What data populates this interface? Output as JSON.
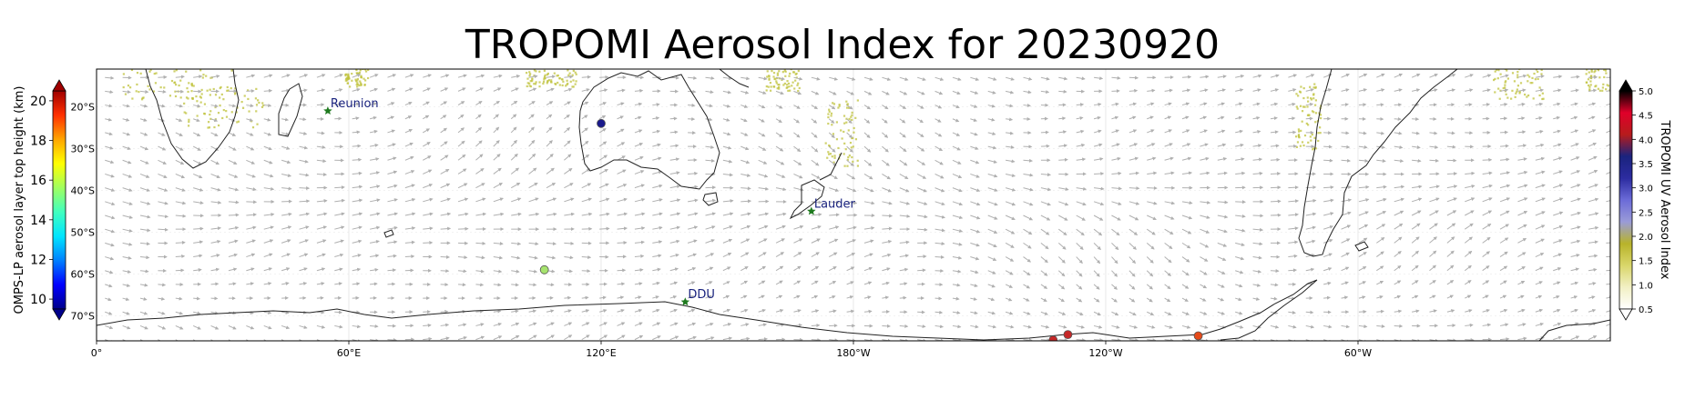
{
  "title": "TROPOMI Aerosol Index for 20230920",
  "map": {
    "lon_min": 0,
    "lon_max": 360,
    "lat_min": -76,
    "lat_max": -11,
    "x_ticks": [
      {
        "lon": 0,
        "label": "0°"
      },
      {
        "lon": 60,
        "label": "60°E"
      },
      {
        "lon": 120,
        "label": "120°E"
      },
      {
        "lon": 180,
        "label": "180°W"
      },
      {
        "lon": 240,
        "label": "120°W"
      },
      {
        "lon": 300,
        "label": "60°W"
      }
    ],
    "y_ticks": [
      {
        "lat": -20,
        "label": "20°S"
      },
      {
        "lat": -30,
        "label": "30°S"
      },
      {
        "lat": -40,
        "label": "40°S"
      },
      {
        "lat": -50,
        "label": "50°S"
      },
      {
        "lat": -60,
        "label": "60°S"
      },
      {
        "lat": -70,
        "label": "70°S"
      }
    ],
    "wind_arrow_color": "#b0b0b0",
    "coastline_color": "#222222",
    "aerosol_patch_color": "#bfc13a"
  },
  "stations": [
    {
      "name": "Reunion",
      "lon": 55,
      "lat": -21,
      "marker": "star",
      "color": "#1f7a1f",
      "label_color": "#1a237e"
    },
    {
      "name": "Lauder",
      "lon": 170,
      "lat": -45,
      "marker": "star",
      "color": "#1f7a1f",
      "label_color": "#1a237e"
    },
    {
      "name": "DDU",
      "lon": 140,
      "lat": -66.7,
      "marker": "star",
      "color": "#1f7a1f",
      "label_color": "#1a237e"
    }
  ],
  "omps_points": [
    {
      "lon": 120,
      "lat": -24,
      "height_km": 10.2,
      "color": "#1a1a8c"
    },
    {
      "lon": 106.5,
      "lat": -59,
      "height_km": 15.6,
      "color": "#a6e36e"
    },
    {
      "lon": 231,
      "lat": -74.5,
      "height_km": 19.8,
      "color": "#c62828"
    },
    {
      "lon": 227.5,
      "lat": -75.8,
      "height_km": 19.8,
      "color": "#c62828"
    },
    {
      "lon": 262,
      "lat": -74.8,
      "height_km": 18.5,
      "color": "#e64a19"
    }
  ],
  "left_colorbar": {
    "label": "OMPS-LP aerosol layer top height (km)",
    "ticks": [
      "10",
      "12",
      "14",
      "16",
      "18",
      "20"
    ],
    "min": 9.5,
    "max": 20.5,
    "colors": [
      "#00008b",
      "#0000ff",
      "#0080ff",
      "#00e5ff",
      "#40ffbf",
      "#a0ff60",
      "#ffff00",
      "#ffa500",
      "#ff3000",
      "#a00000"
    ]
  },
  "right_colorbar": {
    "label": "TROPOMI UV Aerosol Index",
    "ticks": [
      "0.5",
      "1.0",
      "1.5",
      "2.0",
      "2.5",
      "3.0",
      "3.5",
      "4.0",
      "4.5",
      "5.0"
    ],
    "min": 0.5,
    "max": 5.0,
    "colors": [
      "#ffffff",
      "#f2f0c4",
      "#d9d66a",
      "#b8b32a",
      "#9a9bd8",
      "#6b6bd8",
      "#2c2ca0",
      "#1a237e",
      "#b71c1c",
      "#e0002a",
      "#000000"
    ]
  }
}
